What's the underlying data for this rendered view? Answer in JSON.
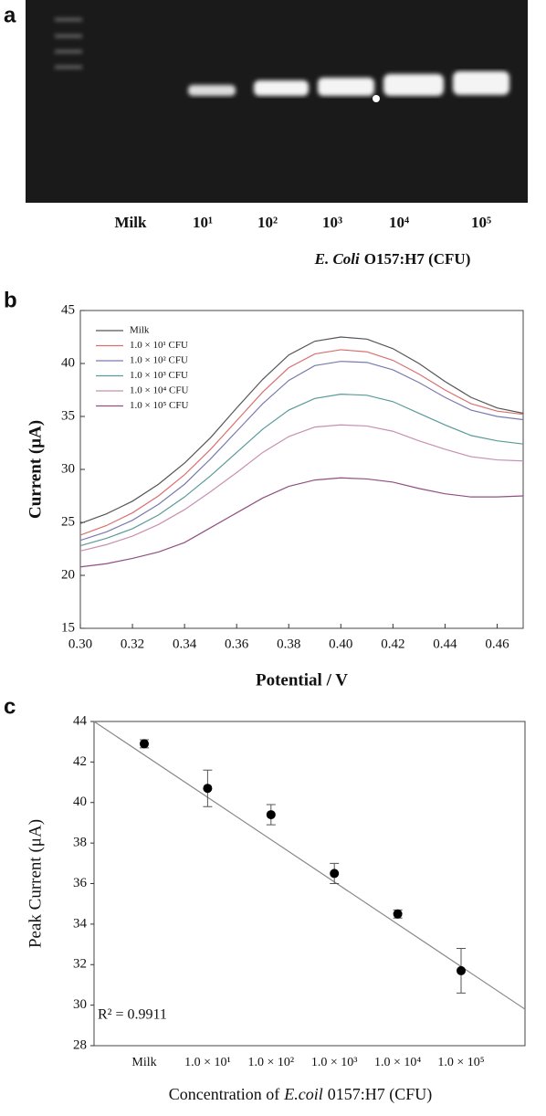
{
  "gel": {
    "panel_label": "a",
    "lanes": [
      "Milk",
      "10¹",
      "10²",
      "10³",
      "10⁴",
      "10⁵"
    ],
    "caption_italic": "E. Coli",
    "caption": "O157:H7 (CFU)"
  },
  "chart_data": [
    {
      "type": "line",
      "panel_label": "b",
      "xlabel": "Potential / V",
      "ylabel": "Current (μA)",
      "legend": "upper left",
      "x": [
        0.3,
        0.31,
        0.32,
        0.33,
        0.34,
        0.35,
        0.36,
        0.37,
        0.38,
        0.39,
        0.4,
        0.41,
        0.42,
        0.43,
        0.44,
        0.45,
        0.46,
        0.47
      ],
      "xlim": [
        0.3,
        0.47
      ],
      "xticks": [
        {
          "value": 0.3,
          "label": "0.30"
        },
        0.32,
        0.34,
        0.36,
        0.38,
        {
          "value": 0.4,
          "label": "0.40"
        },
        0.42,
        0.44,
        0.46
      ],
      "ylim": [
        15,
        45
      ],
      "yticks": [
        15,
        20,
        25,
        30,
        35,
        40,
        45
      ],
      "series": [
        {
          "name": "Milk",
          "color": "#555555",
          "values": [
            24.9,
            25.8,
            27.0,
            28.6,
            30.6,
            33.0,
            35.8,
            38.5,
            40.8,
            42.1,
            42.5,
            42.3,
            41.4,
            40.0,
            38.3,
            36.8,
            35.8,
            35.3
          ]
        },
        {
          "name": "1.0 × 10¹ CFU",
          "color": "#d97070",
          "values": [
            23.8,
            24.7,
            25.9,
            27.5,
            29.5,
            31.9,
            34.6,
            37.3,
            39.6,
            40.9,
            41.3,
            41.1,
            40.3,
            39.0,
            37.5,
            36.2,
            35.5,
            35.2
          ]
        },
        {
          "name": "1.0 × 10² CFU",
          "color": "#7a7ab0",
          "values": [
            23.3,
            24.1,
            25.2,
            26.7,
            28.6,
            31.0,
            33.6,
            36.2,
            38.4,
            39.8,
            40.2,
            40.1,
            39.4,
            38.2,
            36.8,
            35.6,
            35.0,
            34.7
          ]
        },
        {
          "name": "1.0 × 10³ CFU",
          "color": "#5a9a9a",
          "values": [
            22.8,
            23.5,
            24.4,
            25.7,
            27.4,
            29.4,
            31.6,
            33.8,
            35.6,
            36.7,
            37.1,
            37.0,
            36.4,
            35.3,
            34.2,
            33.2,
            32.7,
            32.4
          ]
        },
        {
          "name": "1.0 × 10⁴ CFU",
          "color": "#c890b0",
          "values": [
            22.3,
            22.9,
            23.7,
            24.8,
            26.2,
            27.9,
            29.7,
            31.6,
            33.1,
            34.0,
            34.2,
            34.1,
            33.6,
            32.7,
            31.9,
            31.2,
            30.9,
            30.8
          ]
        },
        {
          "name": "1.0 × 10⁵ CFU",
          "color": "#905080",
          "values": [
            20.8,
            21.1,
            21.6,
            22.2,
            23.1,
            24.5,
            25.9,
            27.3,
            28.4,
            29.0,
            29.2,
            29.1,
            28.8,
            28.2,
            27.7,
            27.4,
            27.4,
            27.5
          ]
        }
      ]
    },
    {
      "type": "scatter",
      "panel_label": "c",
      "ylabel": "Peak Current (μA)",
      "xlabel": [
        "Concentration of",
        "E.coil",
        "0157:H7 (CFU)"
      ],
      "categories": [
        "Milk",
        "1.0 × 10¹",
        "1.0 × 10²",
        "1.0 × 10³",
        "1.0 × 10⁴",
        "1.0 × 10⁵"
      ],
      "values": [
        42.9,
        40.7,
        39.4,
        36.5,
        34.5,
        31.7
      ],
      "errors": [
        0.2,
        0.9,
        0.5,
        0.5,
        0.2,
        1.1
      ],
      "color": "#000000",
      "trendline": {
        "values": [
          44.0,
          29.8
        ],
        "color": "#888888"
      },
      "annotation": "R² = 0.9911",
      "ylim": [
        28,
        44
      ],
      "yticks": [
        28,
        30,
        32,
        34,
        36,
        38,
        40,
        42,
        44
      ]
    }
  ]
}
